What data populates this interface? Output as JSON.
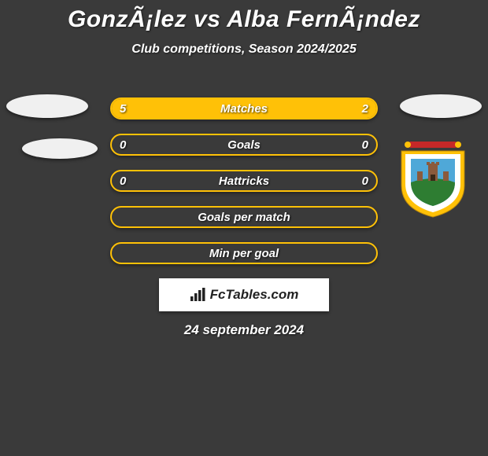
{
  "title": "GonzÃ¡lez vs Alba FernÃ¡ndez",
  "subtitle": "Club competitions, Season 2024/2025",
  "date": "24 september 2024",
  "logo_text": "FcTables.com",
  "colors": {
    "background": "#3a3a3a",
    "bar_border": "#ffc107",
    "bar_fill": "#ffc107",
    "text": "#ffffff",
    "logo_bg": "#ffffff",
    "logo_text": "#222222",
    "ellipse": "#f0f0f0"
  },
  "bars": [
    {
      "label": "Matches",
      "left_val": "5",
      "right_val": "2",
      "left_pct": 71,
      "right_pct": 29
    },
    {
      "label": "Goals",
      "left_val": "0",
      "right_val": "0",
      "left_pct": 0,
      "right_pct": 0
    },
    {
      "label": "Hattricks",
      "left_val": "0",
      "right_val": "0",
      "left_pct": 0,
      "right_pct": 0
    },
    {
      "label": "Goals per match",
      "left_val": "",
      "right_val": "",
      "left_pct": 0,
      "right_pct": 0
    },
    {
      "label": "Min per goal",
      "left_val": "",
      "right_val": "",
      "left_pct": 0,
      "right_pct": 0
    }
  ],
  "crest": {
    "shield_outer": "#ffc107",
    "shield_inner": "#ffffff",
    "sky": "#4fa8d8",
    "hill": "#2e7d32",
    "tower": "#8b5a3c",
    "banner": "#c62828"
  }
}
